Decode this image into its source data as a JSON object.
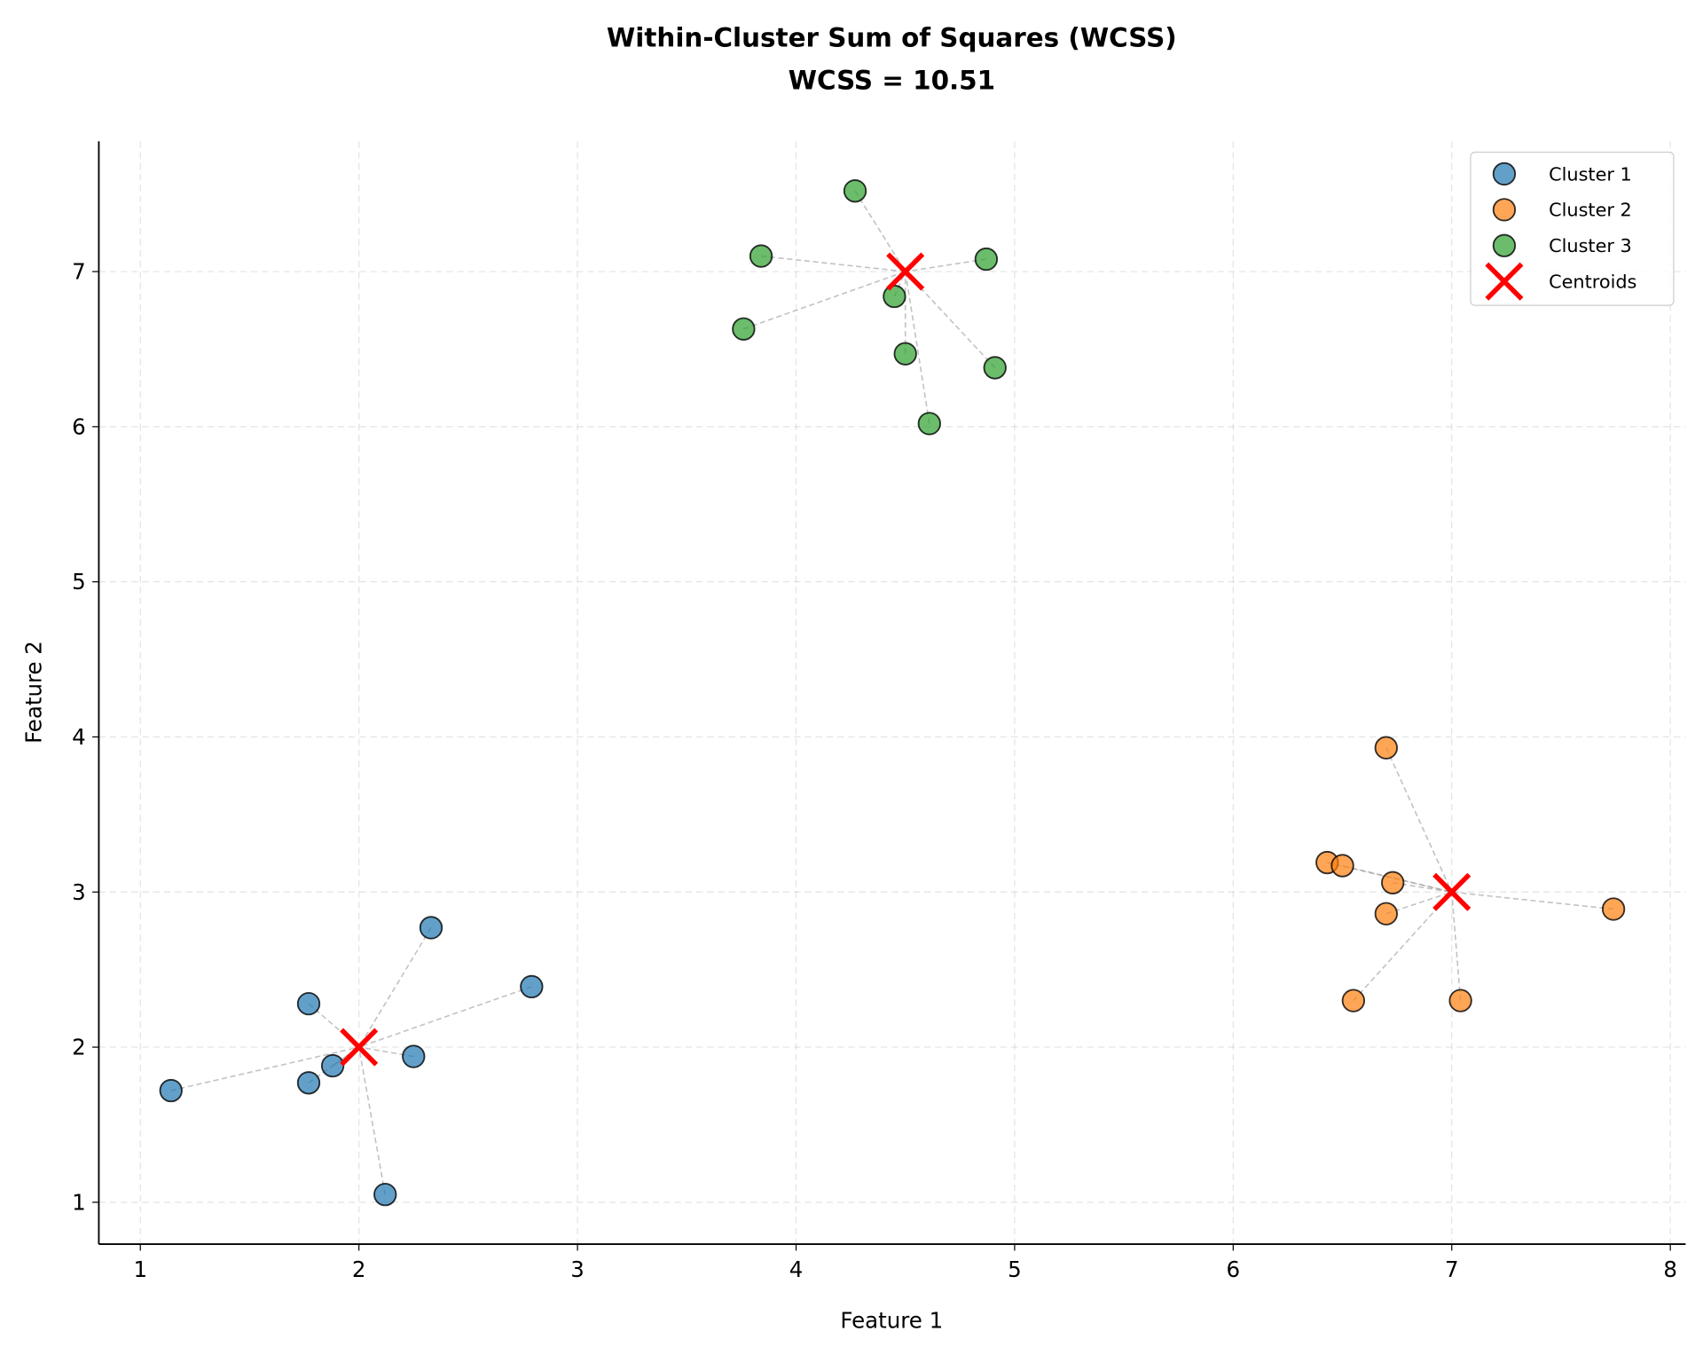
{
  "chart_data": {
    "type": "scatter",
    "title": "Within-Cluster Sum of Squares (WCSS)",
    "subtitle": "WCSS = 10.51",
    "xlabel": "Feature 1",
    "ylabel": "Feature 2",
    "xlim": [
      0.81,
      8.07
    ],
    "ylim": [
      0.73,
      7.84
    ],
    "xticks": [
      1,
      2,
      3,
      4,
      5,
      6,
      7,
      8
    ],
    "yticks": [
      1,
      2,
      3,
      4,
      5,
      6,
      7
    ],
    "grid": true,
    "legend_position": "top-right",
    "series": [
      {
        "name": "Cluster 1",
        "color": "#1f77b4",
        "points": [
          [
            1.14,
            1.72
          ],
          [
            1.77,
            2.28
          ],
          [
            1.77,
            1.77
          ],
          [
            1.88,
            1.88
          ],
          [
            2.25,
            1.94
          ],
          [
            2.33,
            2.77
          ],
          [
            2.79,
            2.39
          ],
          [
            2.12,
            1.05
          ]
        ]
      },
      {
        "name": "Cluster 2",
        "color": "#ff7f0e",
        "points": [
          [
            6.7,
            3.93
          ],
          [
            6.43,
            3.19
          ],
          [
            6.5,
            3.17
          ],
          [
            6.73,
            3.06
          ],
          [
            6.7,
            2.86
          ],
          [
            7.74,
            2.89
          ],
          [
            6.55,
            2.3
          ],
          [
            7.04,
            2.3
          ]
        ]
      },
      {
        "name": "Cluster 3",
        "color": "#2ca02c",
        "points": [
          [
            4.27,
            7.52
          ],
          [
            3.84,
            7.1
          ],
          [
            4.87,
            7.08
          ],
          [
            4.45,
            6.84
          ],
          [
            3.76,
            6.63
          ],
          [
            4.5,
            6.47
          ],
          [
            4.91,
            6.38
          ],
          [
            4.61,
            6.02
          ]
        ]
      }
    ],
    "centroids": {
      "name": "Centroids",
      "color": "#ff0000",
      "points": [
        [
          2.0,
          2.0
        ],
        [
          7.0,
          3.0
        ],
        [
          4.5,
          7.0
        ]
      ]
    }
  }
}
